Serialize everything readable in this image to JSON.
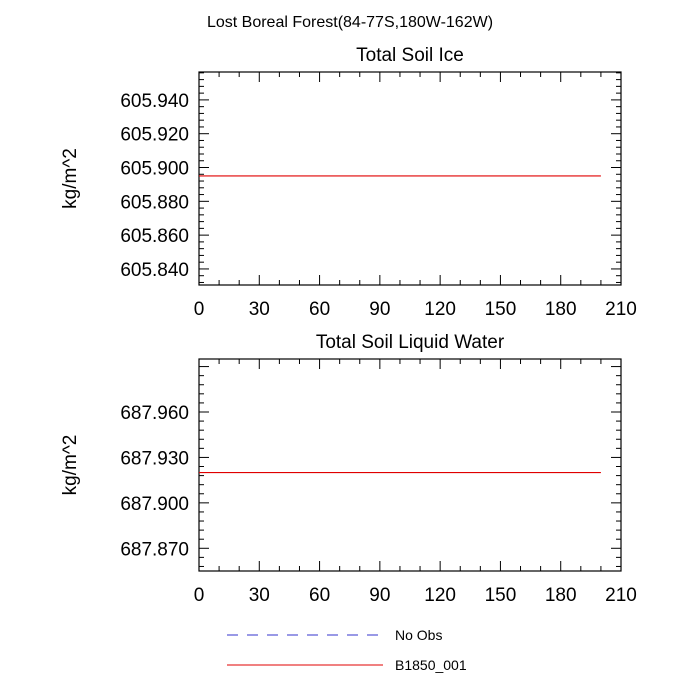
{
  "title": "Lost Boreal Forest(84-77S,180W-162W)",
  "legend": {
    "placement": "bottom-center",
    "entries": [
      {
        "label": "No Obs",
        "color": "#3333cc",
        "style": "dashed"
      },
      {
        "label": "B1850_001",
        "color": "#e00000",
        "style": "solid"
      }
    ]
  },
  "chart_data": [
    {
      "type": "line",
      "title": "Total Soil Ice",
      "xlabel": "",
      "ylabel": "kg/m^2",
      "xlim": [
        0,
        210
      ],
      "ylim": [
        605.8305,
        605.9565
      ],
      "xticks": [
        0,
        30,
        60,
        90,
        120,
        150,
        180,
        210
      ],
      "xtick_labels": [
        "0",
        "30",
        "60",
        "90",
        "120",
        "150",
        "180",
        "210"
      ],
      "yticks": [
        605.84,
        605.86,
        605.88,
        605.9,
        605.92,
        605.94
      ],
      "ytick_labels": [
        "605.840",
        "605.860",
        "605.880",
        "605.900",
        "605.920",
        "605.940"
      ],
      "grid": false,
      "series": [
        {
          "name": "B1850_001",
          "color": "#e00000",
          "x": [
            0,
            200
          ],
          "y": [
            605.895,
            605.895
          ]
        }
      ]
    },
    {
      "type": "line",
      "title": "Total Soil Liquid Water",
      "xlabel": "",
      "ylabel": "kg/m^2",
      "xlim": [
        0,
        210
      ],
      "ylim": [
        687.855,
        687.995
      ],
      "xticks": [
        0,
        30,
        60,
        90,
        120,
        150,
        180,
        210
      ],
      "xtick_labels": [
        "0",
        "30",
        "60",
        "90",
        "120",
        "150",
        "180",
        "210"
      ],
      "yticks": [
        687.87,
        687.9,
        687.93,
        687.96
      ],
      "ytick_labels": [
        "687.870",
        "687.900",
        "687.930",
        "687.960"
      ],
      "grid": false,
      "series": [
        {
          "name": "B1850_001",
          "color": "#e00000",
          "x": [
            0,
            200
          ],
          "y": [
            687.92,
            687.92
          ]
        }
      ]
    }
  ]
}
